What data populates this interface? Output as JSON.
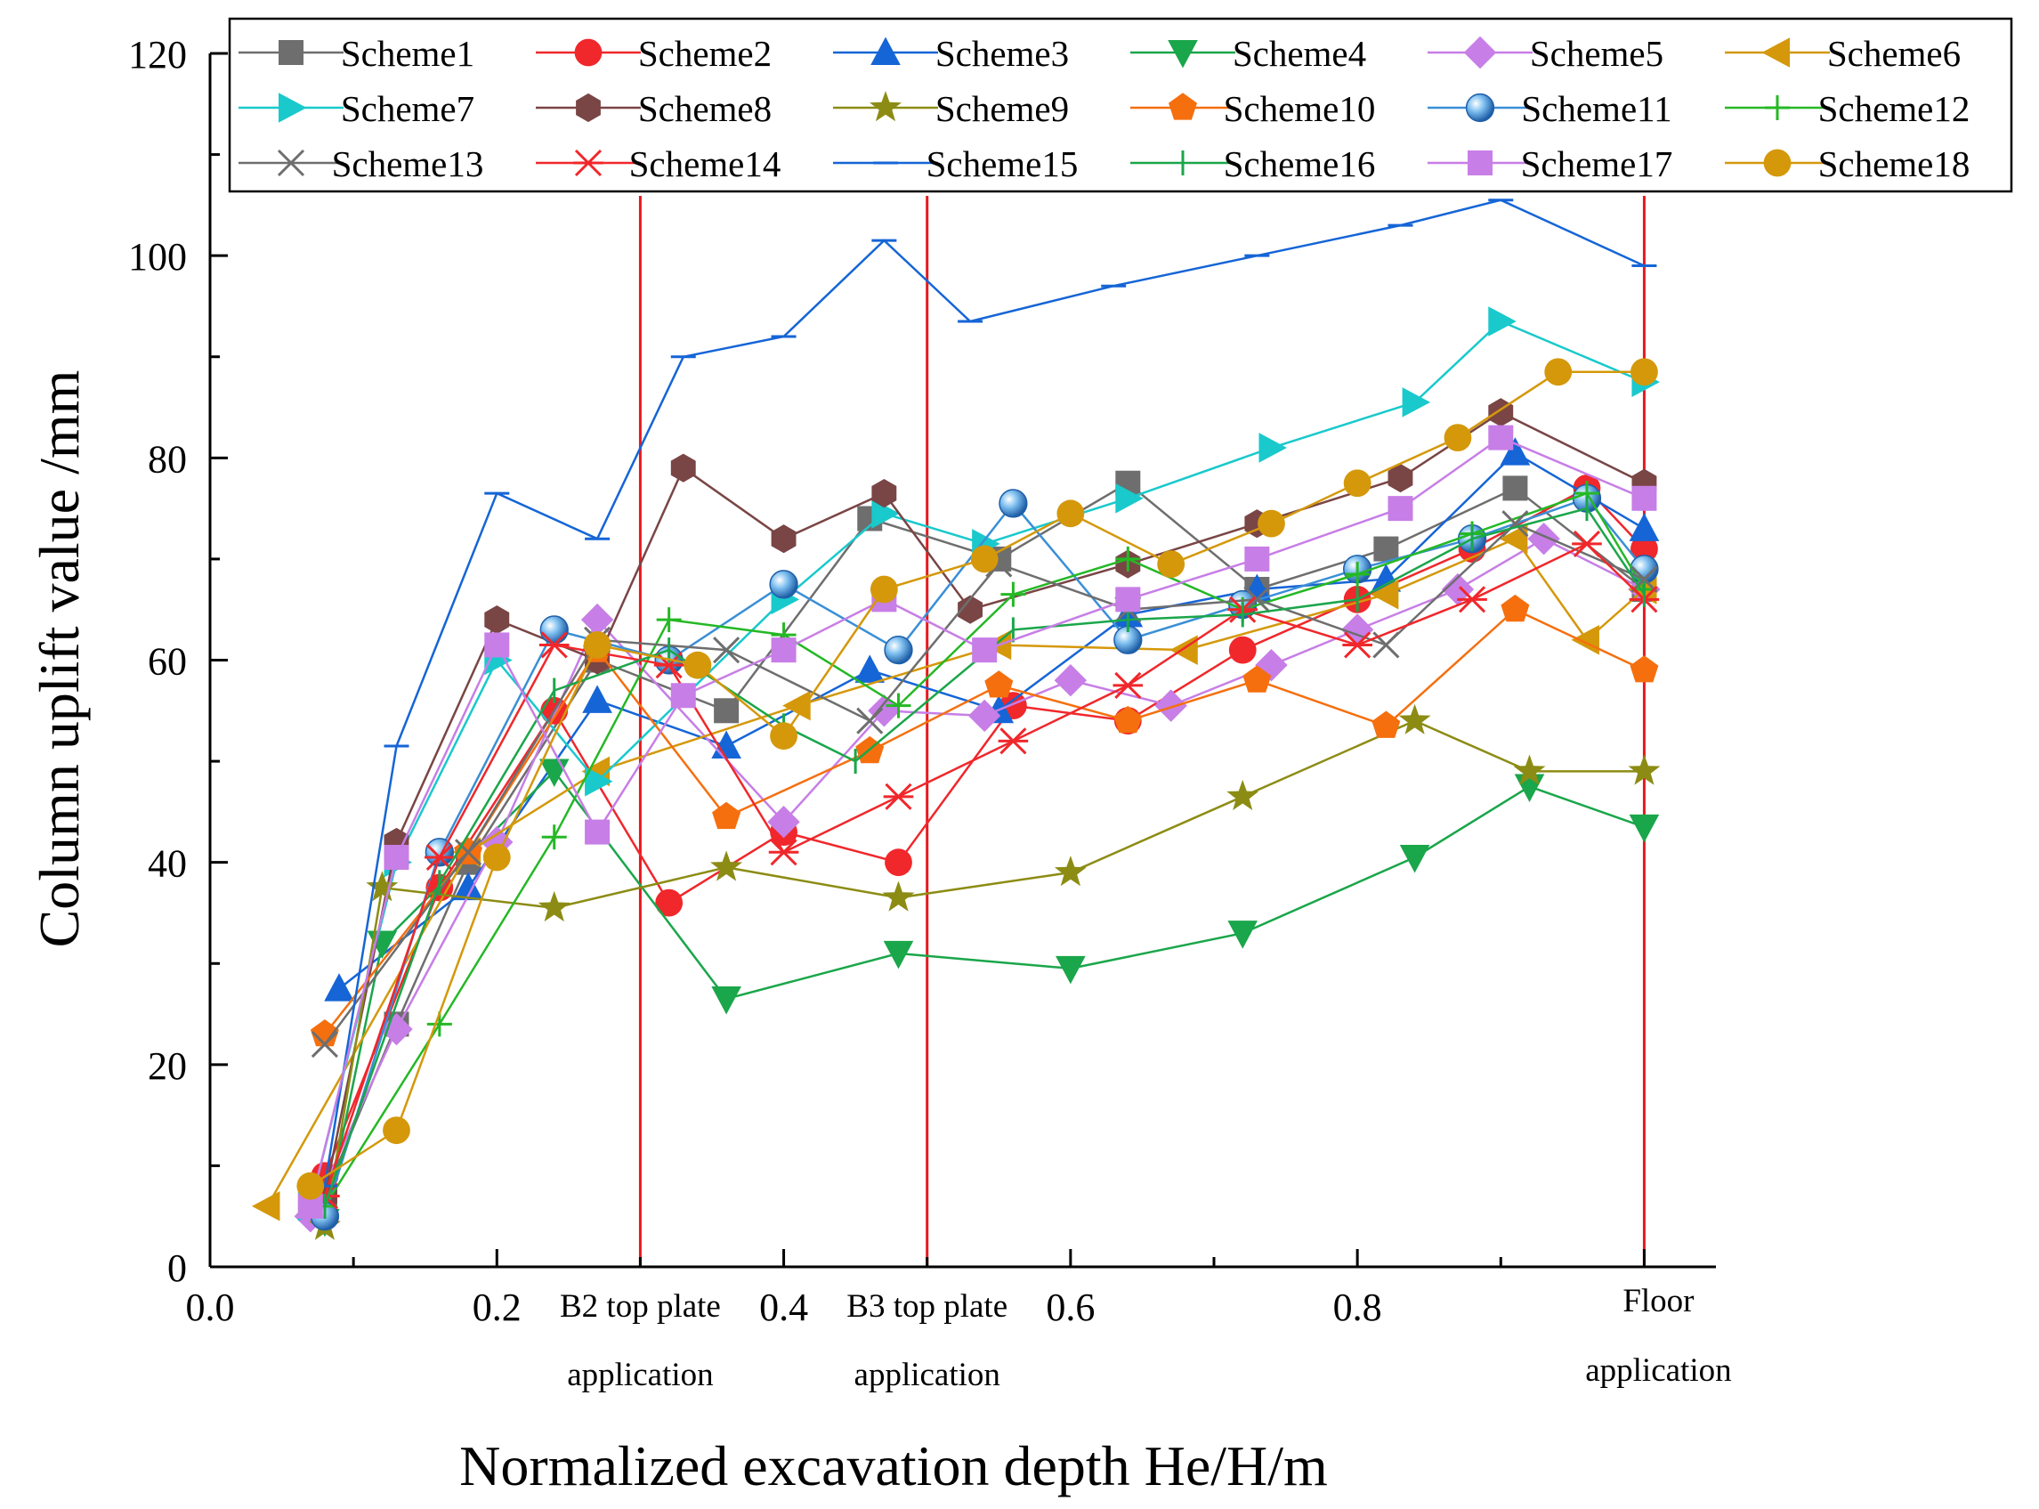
{
  "chart_data": {
    "type": "line",
    "xlabel": "Normalized excavation depth He/H/m",
    "ylabel": "Column uplift value /mm",
    "xlim": [
      0.0,
      1.05
    ],
    "ylim": [
      0,
      120
    ],
    "x_ticks": [
      "0.0",
      "0.2",
      "0.4",
      "0.6",
      "0.8"
    ],
    "x_tick_values": [
      0.0,
      0.2,
      0.4,
      0.6,
      0.8
    ],
    "y_ticks": [
      "0",
      "20",
      "40",
      "60",
      "80",
      "100",
      "120"
    ],
    "y_tick_values": [
      0,
      20,
      40,
      60,
      80,
      100,
      120
    ],
    "legend_position": "top",
    "markers": [
      {
        "x": 0.3,
        "line1": "B2 top plate",
        "line2": "application"
      },
      {
        "x": 0.5,
        "line1": "B3 top plate",
        "line2": "application"
      },
      {
        "x": 1.0,
        "line1": "Floor",
        "line2": "application"
      }
    ],
    "marker_line_color": "#e8191e",
    "series": [
      {
        "name": "Scheme1",
        "color": "#6e6e6e",
        "marker": "square",
        "x": [
          0.08,
          0.13,
          0.18,
          0.27,
          0.36,
          0.46,
          0.55,
          0.64,
          0.73,
          0.82,
          0.91,
          1.0
        ],
        "y": [
          7,
          24,
          40,
          60,
          55,
          74,
          70,
          77.5,
          67,
          71,
          77,
          67
        ]
      },
      {
        "name": "Scheme2",
        "color": "#f0272b",
        "marker": "circle",
        "x": [
          0.08,
          0.16,
          0.24,
          0.32,
          0.4,
          0.48,
          0.56,
          0.64,
          0.72,
          0.8,
          0.88,
          0.96,
          1.0
        ],
        "y": [
          9,
          37.5,
          55,
          36,
          43,
          40,
          55.5,
          54,
          61,
          66,
          71,
          77,
          71
        ]
      },
      {
        "name": "Scheme3",
        "color": "#1565d6",
        "marker": "triangle-up",
        "x": [
          0.09,
          0.18,
          0.27,
          0.36,
          0.46,
          0.55,
          0.64,
          0.73,
          0.82,
          0.91,
          1.0
        ],
        "y": [
          27.5,
          37.5,
          56,
          51.5,
          59,
          55,
          64.5,
          67,
          68,
          80.5,
          73
        ]
      },
      {
        "name": "Scheme4",
        "color": "#1aa64a",
        "marker": "triangle-down",
        "x": [
          0.08,
          0.12,
          0.24,
          0.36,
          0.48,
          0.6,
          0.72,
          0.84,
          0.92,
          1.0
        ],
        "y": [
          4.5,
          32,
          49,
          26.5,
          31,
          29.5,
          33,
          40.5,
          47.5,
          43.5
        ]
      },
      {
        "name": "Scheme5",
        "color": "#c77ee6",
        "marker": "diamond",
        "x": [
          0.07,
          0.13,
          0.2,
          0.27,
          0.4,
          0.47,
          0.54,
          0.6,
          0.67,
          0.74,
          0.8,
          0.87,
          0.93,
          1.0
        ],
        "y": [
          5,
          23.5,
          42,
          64,
          44,
          55,
          54.5,
          58,
          55.5,
          59.5,
          63,
          67,
          72,
          67
        ]
      },
      {
        "name": "Scheme6",
        "color": "#d4980a",
        "marker": "triangle-left",
        "x": [
          0.04,
          0.18,
          0.27,
          0.41,
          0.55,
          0.68,
          0.82,
          0.91,
          0.96,
          1.0
        ],
        "y": [
          6,
          41,
          49,
          55.5,
          61.5,
          61,
          66.5,
          72,
          62,
          67
        ]
      },
      {
        "name": "Scheme7",
        "color": "#19c9cc",
        "marker": "triangle-right",
        "x": [
          0.07,
          0.13,
          0.2,
          0.27,
          0.4,
          0.47,
          0.54,
          0.64,
          0.74,
          0.84,
          0.9,
          1.0
        ],
        "y": [
          6,
          40,
          60,
          48,
          66,
          74.5,
          71.5,
          76,
          81,
          85.5,
          93.5,
          87.5
        ]
      },
      {
        "name": "Scheme8",
        "color": "#7a4545",
        "marker": "hexagon",
        "x": [
          0.08,
          0.13,
          0.2,
          0.27,
          0.33,
          0.4,
          0.47,
          0.53,
          0.64,
          0.73,
          0.83,
          0.9,
          1.0
        ],
        "y": [
          7,
          42,
          64,
          60,
          79,
          72,
          76.5,
          65,
          69.5,
          73.5,
          78,
          84.5,
          77.5
        ]
      },
      {
        "name": "Scheme9",
        "color": "#8c8c14",
        "marker": "star",
        "x": [
          0.08,
          0.12,
          0.24,
          0.36,
          0.48,
          0.6,
          0.72,
          0.84,
          0.92,
          1.0
        ],
        "y": [
          4,
          37.5,
          35.5,
          39.5,
          36.5,
          39,
          46.5,
          54,
          49,
          49
        ]
      },
      {
        "name": "Scheme10",
        "color": "#f56f0e",
        "marker": "pentagon",
        "x": [
          0.08,
          0.18,
          0.27,
          0.36,
          0.46,
          0.55,
          0.64,
          0.73,
          0.82,
          0.91,
          1.0
        ],
        "y": [
          23,
          41,
          61,
          44.5,
          51,
          57.5,
          54,
          58,
          53.5,
          65,
          59
        ]
      },
      {
        "name": "Scheme11",
        "color": "#3a8fd6",
        "marker": "sphere",
        "x": [
          0.08,
          0.16,
          0.24,
          0.32,
          0.4,
          0.48,
          0.56,
          0.64,
          0.72,
          0.8,
          0.88,
          0.96,
          1.0
        ],
        "y": [
          5,
          41,
          63,
          60,
          67.5,
          61,
          75.5,
          62,
          65.5,
          69,
          72,
          76,
          69
        ]
      },
      {
        "name": "Scheme12",
        "color": "#25b825",
        "marker": "plus",
        "x": [
          0.08,
          0.16,
          0.24,
          0.32,
          0.4,
          0.48,
          0.56,
          0.64,
          0.72,
          0.8,
          0.88,
          0.96,
          1.0
        ],
        "y": [
          6,
          24,
          42.5,
          64,
          62.5,
          55.5,
          66.5,
          70,
          65,
          68.5,
          72.5,
          76.5,
          67
        ]
      },
      {
        "name": "Scheme13",
        "color": "#6e6e6e",
        "marker": "x",
        "x": [
          0.08,
          0.18,
          0.27,
          0.36,
          0.46,
          0.55,
          0.64,
          0.73,
          0.82,
          0.91,
          1.0
        ],
        "y": [
          22,
          41,
          62,
          61,
          54,
          69.5,
          65,
          66,
          61.5,
          73.5,
          68
        ]
      },
      {
        "name": "Scheme14",
        "color": "#f0272b",
        "marker": "asterisk",
        "x": [
          0.08,
          0.16,
          0.24,
          0.32,
          0.4,
          0.48,
          0.56,
          0.64,
          0.72,
          0.8,
          0.88,
          0.96,
          1.0
        ],
        "y": [
          7,
          40.5,
          61.5,
          59.5,
          41,
          46.5,
          52,
          57.5,
          65,
          61.5,
          66,
          71.5,
          66
        ]
      },
      {
        "name": "Scheme15",
        "color": "#1565d6",
        "marker": "hbar",
        "x": [
          0.08,
          0.13,
          0.2,
          0.27,
          0.33,
          0.4,
          0.47,
          0.53,
          0.63,
          0.73,
          0.83,
          0.9,
          1.0
        ],
        "y": [
          8,
          51.5,
          76.5,
          72,
          90,
          92,
          101.5,
          93.5,
          97,
          100,
          103,
          105.5,
          99
        ]
      },
      {
        "name": "Scheme16",
        "color": "#1aa64a",
        "marker": "vbar",
        "x": [
          0.08,
          0.16,
          0.24,
          0.32,
          0.4,
          0.45,
          0.56,
          0.64,
          0.72,
          0.8,
          0.88,
          0.96,
          1.0
        ],
        "y": [
          6,
          38,
          57,
          61,
          53.5,
          50,
          63,
          64,
          64.5,
          66,
          72,
          75,
          66.5
        ]
      },
      {
        "name": "Scheme17",
        "color": "#c77ee6",
        "marker": "square",
        "x": [
          0.07,
          0.13,
          0.2,
          0.27,
          0.33,
          0.4,
          0.47,
          0.54,
          0.64,
          0.73,
          0.83,
          0.9,
          1.0
        ],
        "y": [
          6,
          40.5,
          61.5,
          43,
          56.5,
          61,
          66,
          61,
          66,
          70,
          75,
          82,
          76
        ]
      },
      {
        "name": "Scheme18",
        "color": "#d4980a",
        "marker": "circle",
        "x": [
          0.07,
          0.13,
          0.2,
          0.27,
          0.34,
          0.4,
          0.47,
          0.54,
          0.6,
          0.67,
          0.74,
          0.8,
          0.87,
          0.94,
          1.0
        ],
        "y": [
          8,
          13.5,
          40.5,
          61.5,
          59.5,
          52.5,
          67,
          70,
          74.5,
          69.5,
          73.5,
          77.5,
          82,
          88.5,
          88.5
        ]
      }
    ]
  }
}
